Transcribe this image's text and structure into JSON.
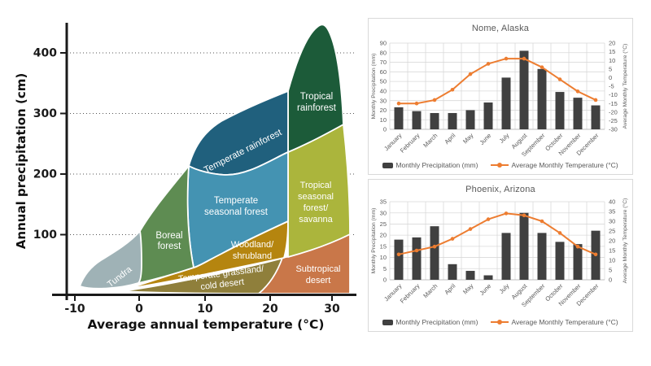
{
  "chart_data": [
    {
      "type": "area",
      "name": "whittaker-biome-diagram",
      "xlabel": "Average annual temperature (°C)",
      "ylabel": "Annual precipitation (cm)",
      "x_ticks": [
        -10,
        0,
        10,
        20,
        30
      ],
      "y_ticks": [
        100,
        200,
        300,
        400
      ],
      "xlim": [
        -13,
        33
      ],
      "ylim": [
        0,
        455
      ],
      "grid": "horizontal dotted",
      "regions": [
        {
          "id": "temperate-grassland-cold-desert",
          "label": [
            "Temperate grassland/",
            "cold desert"
          ],
          "color": "#8F7F3B"
        },
        {
          "id": "subtropical-desert",
          "label": [
            "Subtropical",
            "desert"
          ],
          "color": "#C97749"
        },
        {
          "id": "woodland-shrubland",
          "label": [
            "Woodland/",
            "shrubland"
          ],
          "color": "#B5850F"
        },
        {
          "id": "tropical-seasonal-forest-savanna",
          "label": [
            "Tropical",
            "seasonal",
            "forest/",
            "savanna"
          ],
          "color": "#ABB53C"
        },
        {
          "id": "tropical-rainforest",
          "label": [
            "Tropical",
            "rainforest"
          ],
          "color": "#1C5B39"
        },
        {
          "id": "temperate-rainforest",
          "label": [
            "Temperate rainforest"
          ],
          "color": "#20607D"
        },
        {
          "id": "temperate-seasonal-forest",
          "label": [
            "Temperate",
            "seasonal forest"
          ],
          "color": "#4493B2"
        },
        {
          "id": "boreal-forest",
          "label": [
            "Boreal",
            "forest"
          ],
          "color": "#5E8C52"
        },
        {
          "id": "tundra",
          "label": [
            "Tundra"
          ],
          "color": "#9FB2B6"
        }
      ]
    },
    {
      "type": "combo-bar-line",
      "title": "Nome, Alaska",
      "categories": [
        "January",
        "February",
        "March",
        "April",
        "May",
        "June",
        "July",
        "August",
        "September",
        "October",
        "November",
        "December"
      ],
      "series": [
        {
          "name": "Monthly Precipitation  (mm)",
          "type": "bar",
          "axis": "left",
          "color": "#404040",
          "values": [
            23,
            19,
            17,
            17,
            20,
            28,
            54,
            82,
            63,
            39,
            33,
            25
          ]
        },
        {
          "name": "Average Monthly  Temperature (°C)",
          "type": "line",
          "axis": "right",
          "color": "#ED7D31",
          "values": [
            -15,
            -15,
            -13,
            -7,
            2,
            8,
            11,
            11,
            6,
            -1,
            -8,
            -13
          ]
        }
      ],
      "left_axis": {
        "label": "Monthly Precipitation  (mm)",
        "min": 0,
        "max": 90,
        "step": 10
      },
      "right_axis": {
        "label": "Average Monthly  Temperature (°C)",
        "min": -30,
        "max": 20,
        "step": 5
      },
      "legend_position": "bottom",
      "grid": "both light gray"
    },
    {
      "type": "combo-bar-line",
      "title": "Phoenix, Arizona",
      "categories": [
        "January",
        "February",
        "March",
        "April",
        "May",
        "June",
        "July",
        "August",
        "September",
        "October",
        "November",
        "December"
      ],
      "series": [
        {
          "name": "Monthly Precipitation  (mm)",
          "type": "bar",
          "axis": "left",
          "color": "#404040",
          "values": [
            18,
            19,
            24,
            7,
            4,
            2,
            21,
            30,
            21,
            17,
            16,
            22
          ]
        },
        {
          "name": "Average Monthly  Temperature (°C)",
          "type": "line",
          "axis": "right",
          "color": "#ED7D31",
          "values": [
            13,
            15,
            17,
            21,
            26,
            31,
            34,
            33,
            30,
            24,
            17,
            13
          ]
        }
      ],
      "left_axis": {
        "label": "Monthly Precipitation (mm)",
        "min": 0,
        "max": 35,
        "step": 5
      },
      "right_axis": {
        "label": "Average Monthly Temperature (°C)",
        "min": 0,
        "max": 40,
        "step": 5
      },
      "legend_position": "bottom",
      "grid": "both light gray"
    }
  ],
  "colors": {
    "bar": "#404040",
    "line": "#ED7D31",
    "gridline": "#D9D9D9",
    "chart_text": "#595959",
    "axis_ink": "#1a1a1a"
  }
}
